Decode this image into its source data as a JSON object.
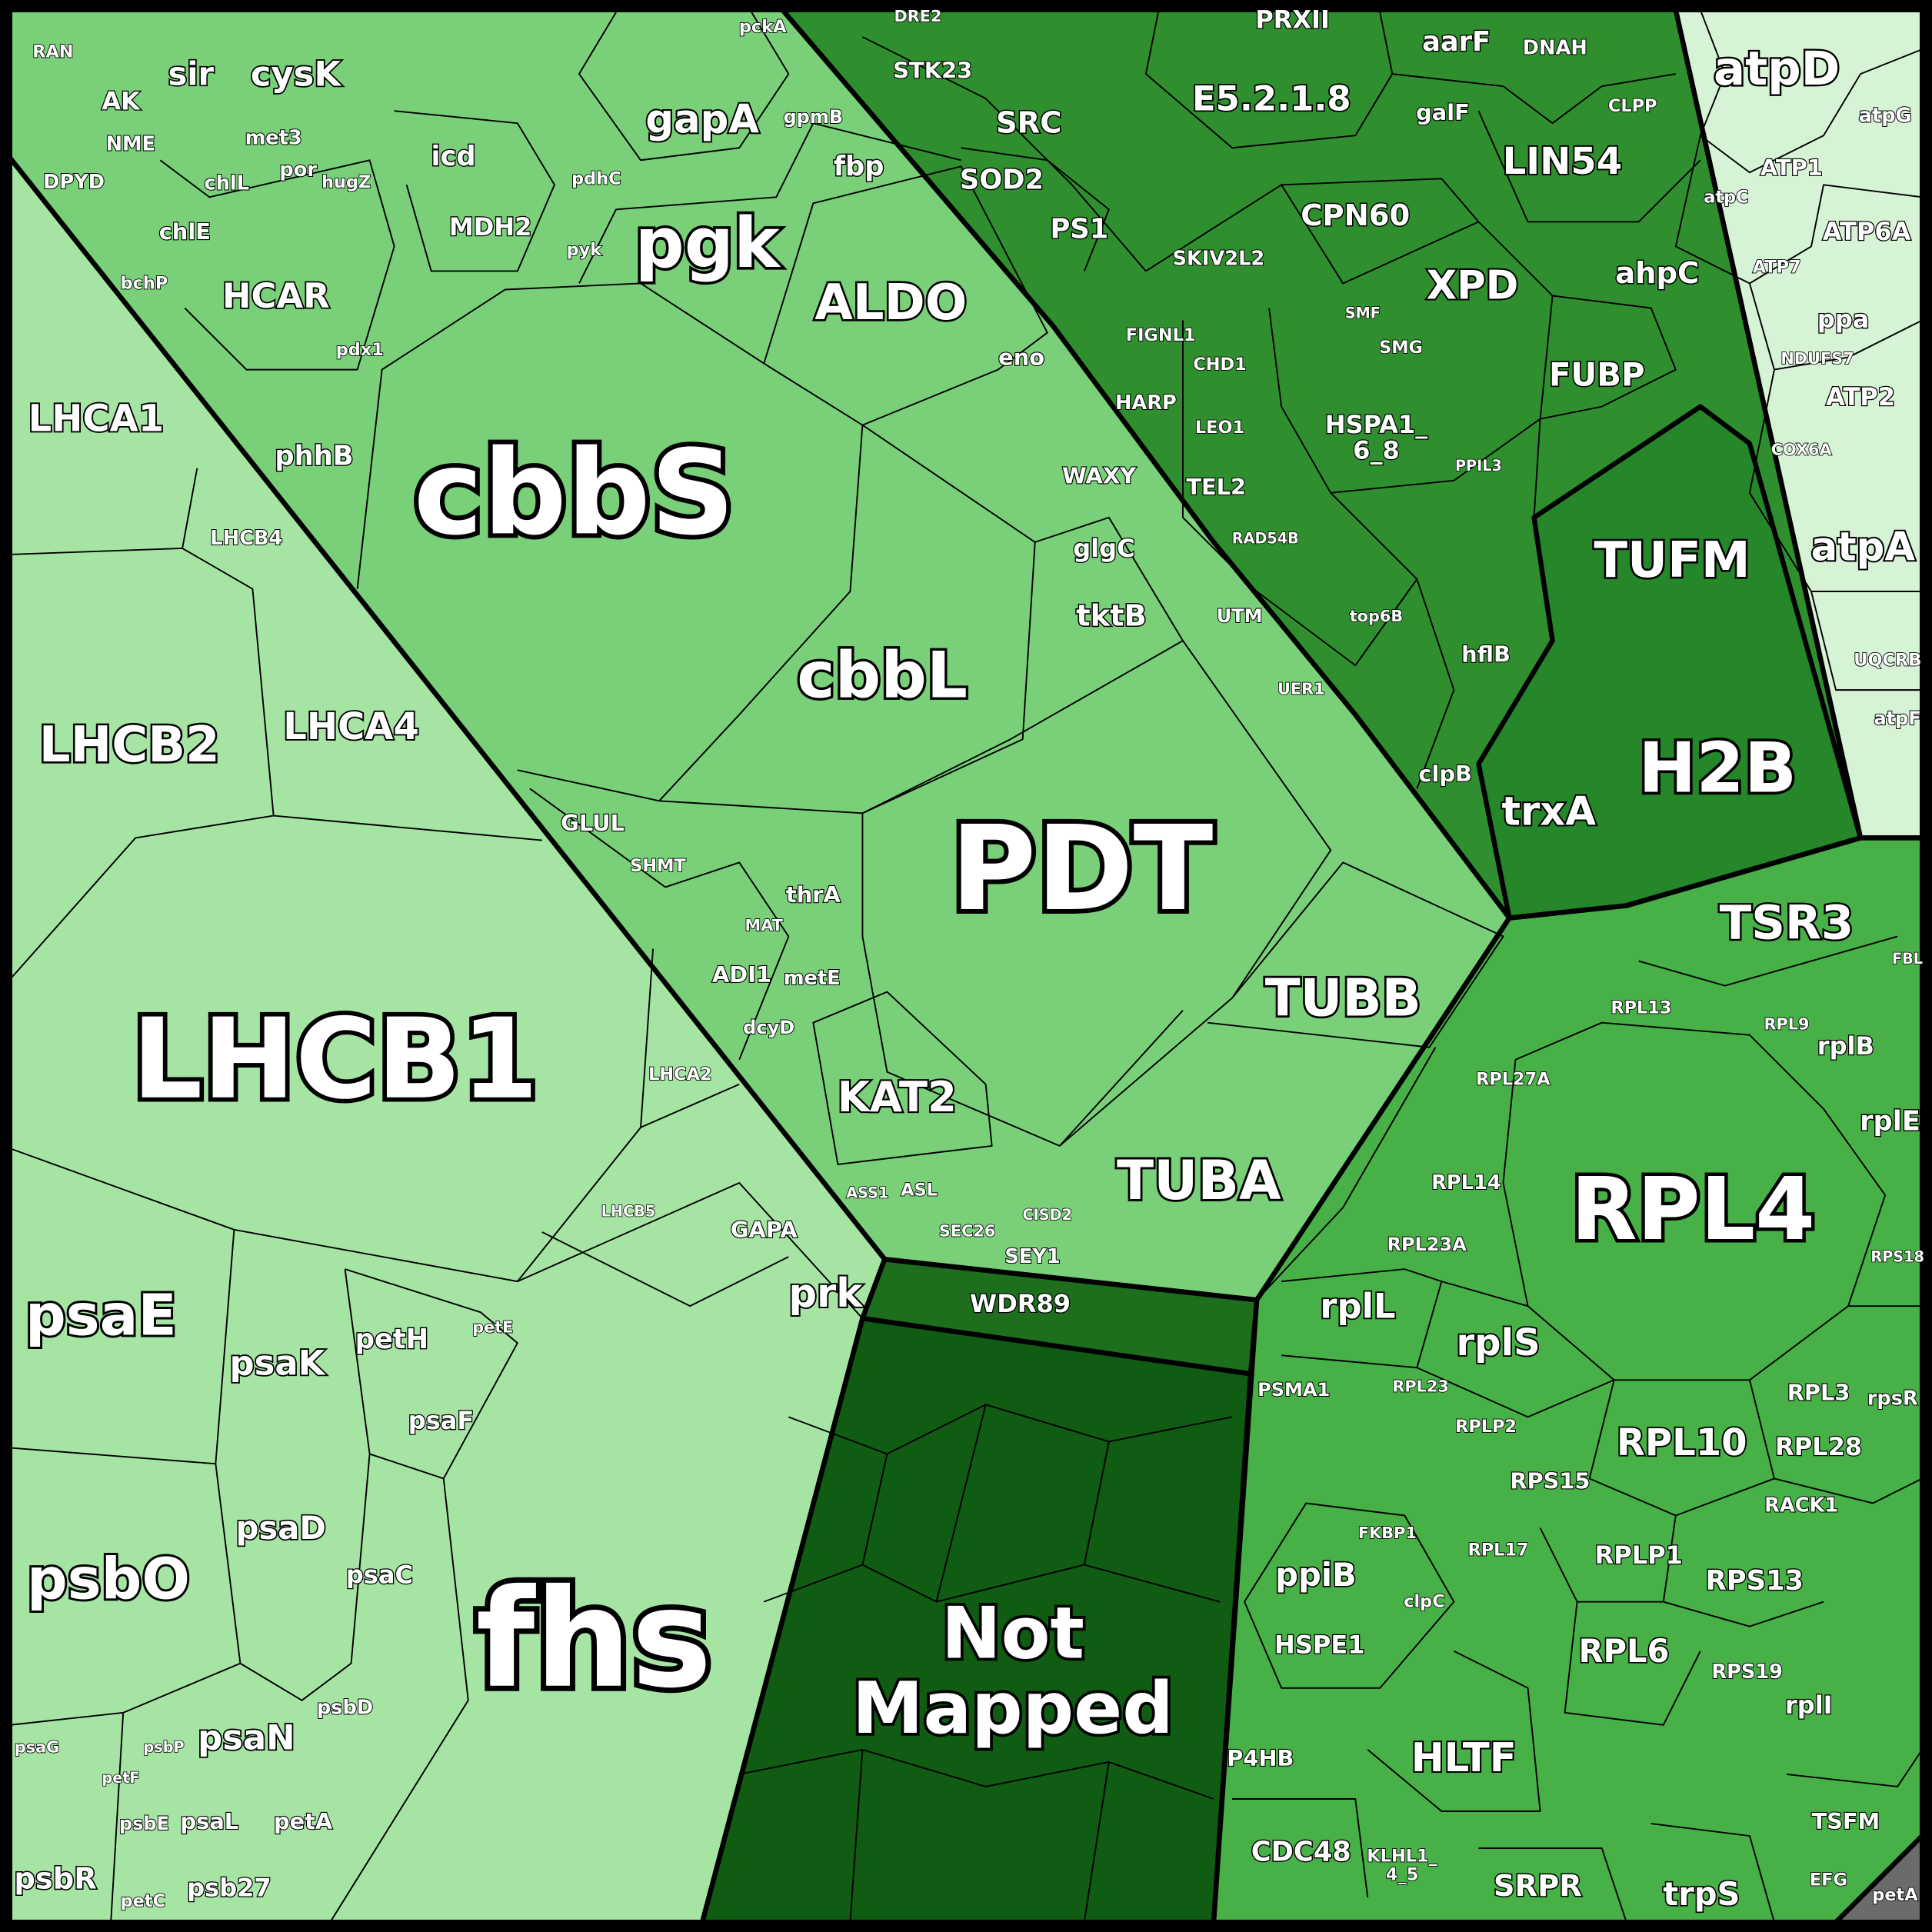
{
  "groups": [
    {
      "color": "#a6e4a4",
      "labels": [
        "LHCA1",
        "LHCB4",
        "LHCB2",
        "LHCA4",
        "LHCB1",
        "LHCA2",
        "LHCB5",
        "GAPA",
        "prk",
        "psaE",
        "psaK",
        "petH",
        "petE",
        "psaF",
        "psaD",
        "psaC",
        "psbO",
        "fhs",
        "psbD",
        "psaN",
        "psaG",
        "psbP",
        "petF",
        "psbE",
        "psaL",
        "petA",
        "psbR",
        "psb27",
        "petC"
      ]
    },
    {
      "color": "#79d079",
      "labels": [
        "RAN",
        "AK",
        "sir",
        "cysK",
        "NME",
        "DPYD",
        "met3",
        "por",
        "hugZ",
        "icd",
        "MDH2",
        "chlL",
        "chlE",
        "HCAR",
        "bchP",
        "pdx1",
        "phhB",
        "pckA",
        "gapA",
        "gpmB",
        "fbp",
        "pdhC",
        "pyk",
        "pgk",
        "ALDO",
        "cbbS",
        "eno",
        "WAXY",
        "glgC",
        "tktB",
        "UTM",
        "cbbL",
        "UER1",
        "GLUL",
        "SHMT",
        "PDT",
        "thrA",
        "MAT",
        "ADI1",
        "metE",
        "dcyD",
        "KAT2",
        "TUBB",
        "TUBA",
        "ASS1",
        "ASL",
        "SEC26",
        "CISD2",
        "SEY1"
      ]
    },
    {
      "color": "#2f8f2f",
      "labels": [
        "DRE2",
        "STK23",
        "SRC",
        "SOD2",
        "PS1",
        "PRXII",
        "E5.2.1.8",
        "aarF",
        "DNAH",
        "galF",
        "CLPP",
        "LIN54",
        "CPN60",
        "SKIV2L2",
        "XPD",
        "ahpC",
        "FIGNL1",
        "CHD1",
        "SMF",
        "SMG",
        "FUBP",
        "HARP",
        "LEO1",
        [
          "HSPA1_",
          "6_8"
        ],
        "PPIL3",
        "TEL2",
        "RAD54B",
        "top6B",
        "hflB",
        "clpB"
      ]
    },
    {
      "color": "#25862a",
      "labels": [
        "TUFM",
        "H2B",
        "trxA"
      ]
    },
    {
      "color": "#d6f3d6",
      "labels": [
        "atpD",
        "atpG",
        "ATP1",
        "atpC",
        "ATP6A",
        "ATP7",
        "ppa",
        "NDUFS7",
        "ATP2",
        "COX6A",
        "atpA",
        "UQCRB",
        "atpF"
      ]
    },
    {
      "color": "#47b047",
      "labels": [
        "TSR3",
        "FBL",
        "RPL13",
        "RPL9",
        "rplB",
        "RPL27A",
        "rplE",
        "RPL4",
        "RPL14",
        "RPL23A",
        "rplL",
        "rplS",
        "RPS18",
        "RPL3",
        "rpsR",
        "RPL10",
        "RPL28",
        "PSMA1",
        "RPL23",
        "RPLP2",
        "RPS15",
        "RACK1",
        "ppiB",
        "FKBP1",
        "clpC",
        "RPLP1",
        "RPS13",
        "HSPE1",
        "RPL6",
        "RPS19",
        "rplI",
        "HLTF",
        "P4HB",
        "CDC48",
        "SRPR",
        "trpS",
        "TSFM",
        "EFG",
        [
          "KLHL1_",
          "4_5"
        ],
        "RPL17"
      ]
    },
    {
      "color": "#1d6e1d",
      "labels": [
        "WDR89"
      ]
    },
    {
      "color": "#0f5c12",
      "labels": [
        [
          "Not",
          "Mapped"
        ]
      ]
    },
    {
      "color": "#6b6b6b",
      "labels": [
        "petA"
      ]
    }
  ]
}
